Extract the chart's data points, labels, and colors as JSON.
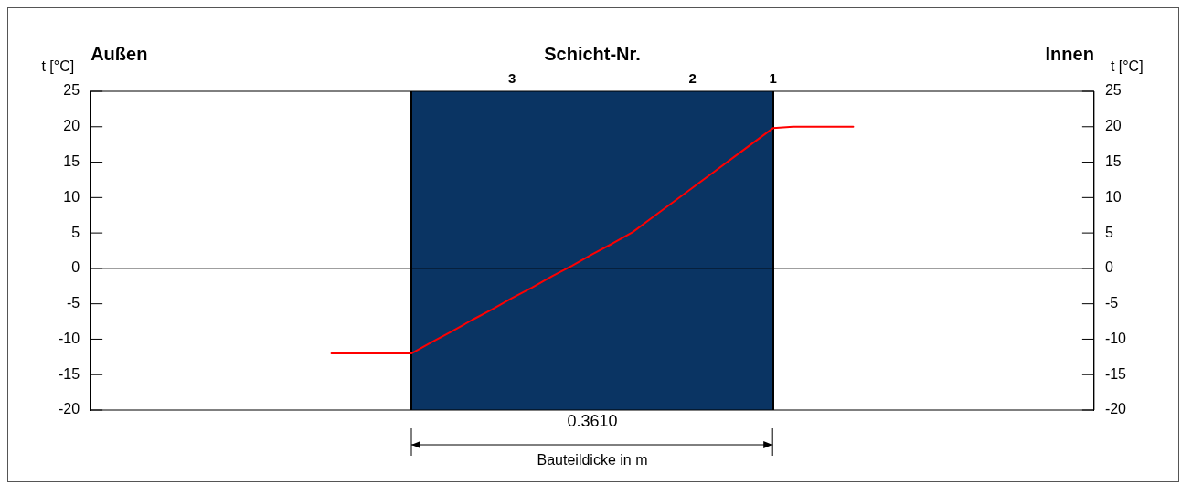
{
  "chart_data": {
    "type": "line",
    "xlabel": "Bauteildicke in m",
    "ylabel": "t [°C]",
    "y2label": "t [°C]",
    "categories": [
      null,
      null,
      null,
      null,
      null,
      null,
      null,
      null,
      null,
      null,
      null,
      null,
      null,
      null,
      null,
      null,
      null,
      null,
      null,
      null,
      null,
      "3",
      null,
      null,
      null,
      null,
      null,
      null,
      null,
      null,
      "2",
      null,
      null,
      null,
      "1",
      null,
      null,
      null,
      null,
      null,
      null,
      null,
      null,
      null,
      null,
      null,
      null,
      null,
      null,
      null,
      null
    ],
    "series": [
      {
        "color": "#ff0000",
        "values": [
          null,
          null,
          null,
          null,
          null,
          null,
          null,
          null,
          null,
          null,
          null,
          null,
          -12,
          -12,
          -12,
          -12,
          -12,
          -10.4,
          -8.9,
          -7.3,
          -5.8,
          -4.2,
          -2.7,
          -1.1,
          0.4,
          2.0,
          3.5,
          5.1,
          7.2,
          9.3,
          11.4,
          13.5,
          15.6,
          17.7,
          19.8,
          20,
          20,
          20,
          20,
          null,
          null,
          null,
          null,
          null,
          null,
          null,
          null,
          null,
          null,
          null,
          null
        ]
      }
    ],
    "ylim": [
      -20,
      25
    ],
    "yticks": [
      -20,
      -15,
      -10,
      -5,
      0,
      5,
      10,
      15,
      20,
      25
    ],
    "y2lim": [
      -20,
      25
    ],
    "y2ticks": [
      -20,
      -15,
      -10,
      -5,
      0,
      5,
      10,
      15,
      20,
      25
    ],
    "legend": false,
    "marker": "none",
    "line_style": "solid",
    "ref_lines": [
      {
        "axis": "y",
        "value": 0,
        "color": "#000000"
      }
    ],
    "annotations": [
      "Außen",
      "Schicht-Nr.",
      "Innen",
      "0.3610"
    ]
  }
}
